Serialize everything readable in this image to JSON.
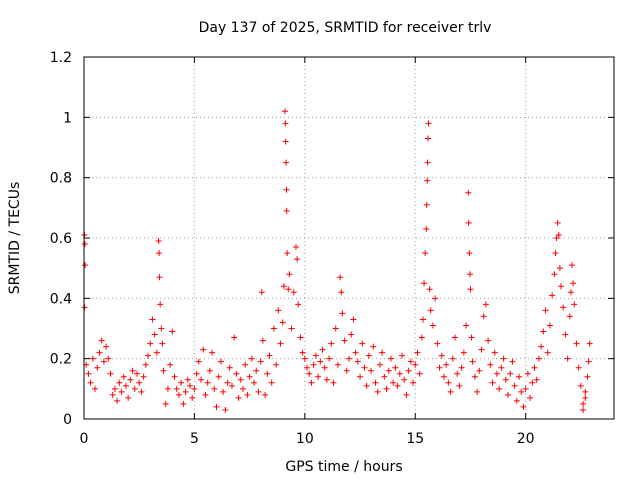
{
  "chart_data": {
    "type": "scatter",
    "title": "Day 137 of 2025, SRMTID for receiver trlv",
    "xlabel": "GPS time / hours",
    "ylabel": "SRMTID / TECUs",
    "xlim": [
      0,
      24
    ],
    "ylim": [
      0,
      1.2
    ],
    "xticks": [
      0,
      5,
      10,
      15,
      20
    ],
    "xtick_labels": [
      "0",
      "5",
      "10",
      "15",
      "20"
    ],
    "yticks": [
      0,
      0.2,
      0.4,
      0.6,
      0.8,
      1,
      1.2
    ],
    "ytick_labels": [
      "0",
      "0.2",
      "0.4",
      "0.6",
      "0.8",
      "1",
      "1.2"
    ],
    "grid": true,
    "marker": "+",
    "color": "#ff0000",
    "series": [
      {
        "name": "trlv",
        "points": [
          [
            0.02,
            0.61
          ],
          [
            0.04,
            0.58
          ],
          [
            0.05,
            0.51
          ],
          [
            0.03,
            0.37
          ],
          [
            0.1,
            0.18
          ],
          [
            0.2,
            0.15
          ],
          [
            0.3,
            0.12
          ],
          [
            0.4,
            0.2
          ],
          [
            0.5,
            0.1
          ],
          [
            0.6,
            0.17
          ],
          [
            0.7,
            0.22
          ],
          [
            0.8,
            0.26
          ],
          [
            0.9,
            0.19
          ],
          [
            1.0,
            0.24
          ],
          [
            1.1,
            0.2
          ],
          [
            1.2,
            0.15
          ],
          [
            1.3,
            0.08
          ],
          [
            1.4,
            0.1
          ],
          [
            1.5,
            0.06
          ],
          [
            1.6,
            0.12
          ],
          [
            1.7,
            0.09
          ],
          [
            1.8,
            0.14
          ],
          [
            1.9,
            0.11
          ],
          [
            2.0,
            0.07
          ],
          [
            2.1,
            0.13
          ],
          [
            2.2,
            0.16
          ],
          [
            2.3,
            0.1
          ],
          [
            2.4,
            0.15
          ],
          [
            2.5,
            0.12
          ],
          [
            2.6,
            0.09
          ],
          [
            2.7,
            0.14
          ],
          [
            2.8,
            0.18
          ],
          [
            2.9,
            0.21
          ],
          [
            3.0,
            0.25
          ],
          [
            3.1,
            0.33
          ],
          [
            3.2,
            0.28
          ],
          [
            3.3,
            0.22
          ],
          [
            3.38,
            0.59
          ],
          [
            3.4,
            0.55
          ],
          [
            3.42,
            0.47
          ],
          [
            3.45,
            0.38
          ],
          [
            3.5,
            0.3
          ],
          [
            3.55,
            0.25
          ],
          [
            3.6,
            0.16
          ],
          [
            3.7,
            0.05
          ],
          [
            3.8,
            0.1
          ],
          [
            3.9,
            0.18
          ],
          [
            4.0,
            0.29
          ],
          [
            4.1,
            0.14
          ],
          [
            4.2,
            0.1
          ],
          [
            4.3,
            0.08
          ],
          [
            4.4,
            0.12
          ],
          [
            4.5,
            0.05
          ],
          [
            4.6,
            0.09
          ],
          [
            4.7,
            0.13
          ],
          [
            4.8,
            0.11
          ],
          [
            4.9,
            0.07
          ],
          [
            5.0,
            0.1
          ],
          [
            5.1,
            0.15
          ],
          [
            5.2,
            0.19
          ],
          [
            5.3,
            0.13
          ],
          [
            5.4,
            0.23
          ],
          [
            5.5,
            0.08
          ],
          [
            5.6,
            0.12
          ],
          [
            5.7,
            0.16
          ],
          [
            5.8,
            0.22
          ],
          [
            5.9,
            0.1
          ],
          [
            6.0,
            0.04
          ],
          [
            6.1,
            0.14
          ],
          [
            6.2,
            0.19
          ],
          [
            6.3,
            0.09
          ],
          [
            6.4,
            0.03
          ],
          [
            6.5,
            0.12
          ],
          [
            6.6,
            0.17
          ],
          [
            6.7,
            0.11
          ],
          [
            6.8,
            0.27
          ],
          [
            6.9,
            0.15
          ],
          [
            7.0,
            0.07
          ],
          [
            7.1,
            0.13
          ],
          [
            7.2,
            0.1
          ],
          [
            7.3,
            0.18
          ],
          [
            7.4,
            0.08
          ],
          [
            7.5,
            0.14
          ],
          [
            7.6,
            0.2
          ],
          [
            7.7,
            0.12
          ],
          [
            7.8,
            0.16
          ],
          [
            7.9,
            0.09
          ],
          [
            8.0,
            0.19
          ],
          [
            8.05,
            0.42
          ],
          [
            8.1,
            0.26
          ],
          [
            8.2,
            0.08
          ],
          [
            8.3,
            0.15
          ],
          [
            8.4,
            0.21
          ],
          [
            8.5,
            0.12
          ],
          [
            8.6,
            0.3
          ],
          [
            8.7,
            0.18
          ],
          [
            8.8,
            0.36
          ],
          [
            8.9,
            0.25
          ],
          [
            9.0,
            0.32
          ],
          [
            9.05,
            0.44
          ],
          [
            9.1,
            1.02
          ],
          [
            9.12,
            0.98
          ],
          [
            9.13,
            0.92
          ],
          [
            9.15,
            0.85
          ],
          [
            9.17,
            0.76
          ],
          [
            9.18,
            0.69
          ],
          [
            9.2,
            0.55
          ],
          [
            9.25,
            0.43
          ],
          [
            9.3,
            0.48
          ],
          [
            9.4,
            0.3
          ],
          [
            9.5,
            0.42
          ],
          [
            9.6,
            0.57
          ],
          [
            9.65,
            0.53
          ],
          [
            9.7,
            0.38
          ],
          [
            9.8,
            0.27
          ],
          [
            9.9,
            0.22
          ],
          [
            10.0,
            0.2
          ],
          [
            10.1,
            0.17
          ],
          [
            10.2,
            0.15
          ],
          [
            10.3,
            0.12
          ],
          [
            10.4,
            0.18
          ],
          [
            10.5,
            0.21
          ],
          [
            10.6,
            0.14
          ],
          [
            10.7,
            0.19
          ],
          [
            10.8,
            0.23
          ],
          [
            10.9,
            0.17
          ],
          [
            11.0,
            0.13
          ],
          [
            11.1,
            0.2
          ],
          [
            11.2,
            0.25
          ],
          [
            11.3,
            0.12
          ],
          [
            11.4,
            0.3
          ],
          [
            11.5,
            0.18
          ],
          [
            11.6,
            0.47
          ],
          [
            11.65,
            0.42
          ],
          [
            11.7,
            0.35
          ],
          [
            11.8,
            0.26
          ],
          [
            11.9,
            0.16
          ],
          [
            12.0,
            0.2
          ],
          [
            12.1,
            0.28
          ],
          [
            12.2,
            0.33
          ],
          [
            12.3,
            0.22
          ],
          [
            12.4,
            0.19
          ],
          [
            12.5,
            0.14
          ],
          [
            12.6,
            0.25
          ],
          [
            12.7,
            0.17
          ],
          [
            12.8,
            0.11
          ],
          [
            12.9,
            0.21
          ],
          [
            13.0,
            0.16
          ],
          [
            13.1,
            0.24
          ],
          [
            13.2,
            0.12
          ],
          [
            13.3,
            0.09
          ],
          [
            13.4,
            0.18
          ],
          [
            13.5,
            0.22
          ],
          [
            13.6,
            0.14
          ],
          [
            13.7,
            0.1
          ],
          [
            13.8,
            0.16
          ],
          [
            13.9,
            0.2
          ],
          [
            14.0,
            0.12
          ],
          [
            14.1,
            0.17
          ],
          [
            14.2,
            0.11
          ],
          [
            14.3,
            0.15
          ],
          [
            14.4,
            0.21
          ],
          [
            14.5,
            0.13
          ],
          [
            14.6,
            0.08
          ],
          [
            14.7,
            0.16
          ],
          [
            14.8,
            0.19
          ],
          [
            14.9,
            0.12
          ],
          [
            15.0,
            0.18
          ],
          [
            15.1,
            0.22
          ],
          [
            15.2,
            0.15
          ],
          [
            15.3,
            0.27
          ],
          [
            15.35,
            0.33
          ],
          [
            15.4,
            0.45
          ],
          [
            15.45,
            0.55
          ],
          [
            15.5,
            0.63
          ],
          [
            15.52,
            0.71
          ],
          [
            15.54,
            0.79
          ],
          [
            15.56,
            0.85
          ],
          [
            15.58,
            0.93
          ],
          [
            15.6,
            0.98
          ],
          [
            15.65,
            0.43
          ],
          [
            15.7,
            0.36
          ],
          [
            15.8,
            0.31
          ],
          [
            15.9,
            0.4
          ],
          [
            16.0,
            0.25
          ],
          [
            16.1,
            0.17
          ],
          [
            16.2,
            0.21
          ],
          [
            16.3,
            0.14
          ],
          [
            16.4,
            0.18
          ],
          [
            16.5,
            0.12
          ],
          [
            16.6,
            0.09
          ],
          [
            16.7,
            0.2
          ],
          [
            16.8,
            0.27
          ],
          [
            16.9,
            0.15
          ],
          [
            17.0,
            0.11
          ],
          [
            17.1,
            0.17
          ],
          [
            17.2,
            0.22
          ],
          [
            17.3,
            0.31
          ],
          [
            17.4,
            0.75
          ],
          [
            17.42,
            0.65
          ],
          [
            17.45,
            0.55
          ],
          [
            17.48,
            0.48
          ],
          [
            17.5,
            0.43
          ],
          [
            17.55,
            0.27
          ],
          [
            17.6,
            0.19
          ],
          [
            17.7,
            0.14
          ],
          [
            17.8,
            0.09
          ],
          [
            17.9,
            0.16
          ],
          [
            18.0,
            0.23
          ],
          [
            18.1,
            0.34
          ],
          [
            18.2,
            0.38
          ],
          [
            18.3,
            0.26
          ],
          [
            18.4,
            0.18
          ],
          [
            18.5,
            0.12
          ],
          [
            18.6,
            0.22
          ],
          [
            18.7,
            0.15
          ],
          [
            18.8,
            0.1
          ],
          [
            18.9,
            0.17
          ],
          [
            19.0,
            0.2
          ],
          [
            19.1,
            0.13
          ],
          [
            19.2,
            0.08
          ],
          [
            19.3,
            0.15
          ],
          [
            19.4,
            0.19
          ],
          [
            19.5,
            0.11
          ],
          [
            19.6,
            0.06
          ],
          [
            19.7,
            0.14
          ],
          [
            19.8,
            0.09
          ],
          [
            19.9,
            0.04
          ],
          [
            20.0,
            0.1
          ],
          [
            20.1,
            0.15
          ],
          [
            20.2,
            0.07
          ],
          [
            20.3,
            0.12
          ],
          [
            20.4,
            0.17
          ],
          [
            20.5,
            0.13
          ],
          [
            20.6,
            0.2
          ],
          [
            20.7,
            0.24
          ],
          [
            20.8,
            0.29
          ],
          [
            20.9,
            0.36
          ],
          [
            21.0,
            0.22
          ],
          [
            21.1,
            0.31
          ],
          [
            21.2,
            0.41
          ],
          [
            21.3,
            0.48
          ],
          [
            21.35,
            0.55
          ],
          [
            21.4,
            0.6
          ],
          [
            21.45,
            0.65
          ],
          [
            21.5,
            0.61
          ],
          [
            21.55,
            0.5
          ],
          [
            21.6,
            0.44
          ],
          [
            21.7,
            0.37
          ],
          [
            21.8,
            0.28
          ],
          [
            21.9,
            0.2
          ],
          [
            22.0,
            0.34
          ],
          [
            22.05,
            0.42
          ],
          [
            22.1,
            0.51
          ],
          [
            22.15,
            0.45
          ],
          [
            22.2,
            0.38
          ],
          [
            22.3,
            0.25
          ],
          [
            22.4,
            0.17
          ],
          [
            22.5,
            0.11
          ],
          [
            22.6,
            0.05
          ],
          [
            22.7,
            0.09
          ],
          [
            22.8,
            0.14
          ],
          [
            22.85,
            0.19
          ],
          [
            22.9,
            0.25
          ],
          [
            22.7,
            0.07
          ],
          [
            22.6,
            0.03
          ]
        ]
      }
    ]
  }
}
